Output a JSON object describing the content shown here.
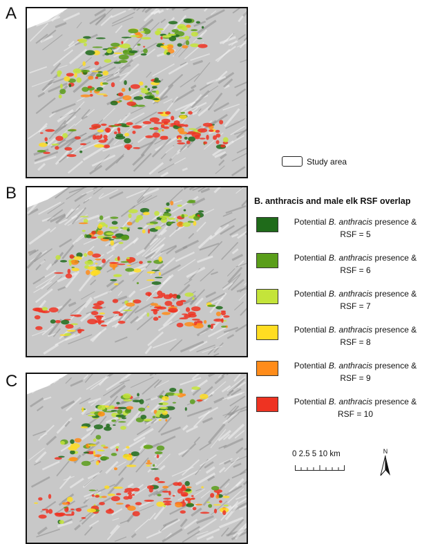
{
  "panels": [
    {
      "letter": "A"
    },
    {
      "letter": "B"
    },
    {
      "letter": "C"
    }
  ],
  "legend": {
    "study_area_label": "Study area",
    "title": "B. anthracis and male elk RSF overlap",
    "item_prefix": "Potential ",
    "item_species": "B. anthracis",
    "item_suffix": " presence &",
    "items": [
      {
        "value": "RSF = 5",
        "color": "#1f6b1a"
      },
      {
        "value": "RSF = 6",
        "color": "#5a9e1a"
      },
      {
        "value": "RSF = 7",
        "color": "#c4e43a"
      },
      {
        "value": "RSF = 8",
        "color": "#ffdd22"
      },
      {
        "value": "RSF = 9",
        "color": "#ff8c1a"
      },
      {
        "value": "RSF = 10",
        "color": "#ee3322"
      }
    ]
  },
  "scale_bar": {
    "label": "0 2.5 5      10 km"
  },
  "north_arrow": {
    "label": "N"
  }
}
